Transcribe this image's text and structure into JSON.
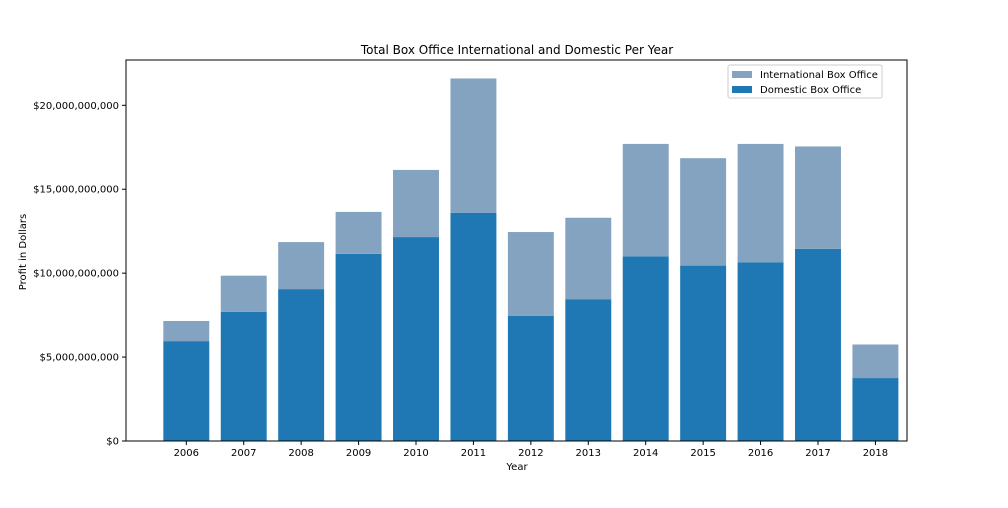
{
  "chart_data": {
    "type": "bar",
    "stacked": true,
    "title": "Total Box Office International and Domestic Per Year",
    "xlabel": "Year",
    "ylabel": "Profit in Dollars",
    "categories": [
      "2006",
      "2007",
      "2008",
      "2009",
      "2010",
      "2011",
      "2012",
      "2013",
      "2014",
      "2015",
      "2016",
      "2017",
      "2018"
    ],
    "series": [
      {
        "name": "Domestic Box Office",
        "color": "#1f77b4",
        "values": [
          5950000000,
          7700000000,
          9050000000,
          11150000000,
          12150000000,
          13600000000,
          7450000000,
          8450000000,
          11000000000,
          10450000000,
          10650000000,
          11450000000,
          3750000000
        ]
      },
      {
        "name": "International Box Office",
        "color": "#84a3c1",
        "values": [
          1200000000,
          2150000000,
          2800000000,
          2500000000,
          4000000000,
          8000000000,
          5000000000,
          4850000000,
          6700000000,
          6400000000,
          7050000000,
          6100000000,
          2000000000
        ]
      }
    ],
    "ylim": [
      0,
      22700000000
    ],
    "yticks": [
      0,
      5000000000,
      10000000000,
      15000000000,
      20000000000
    ],
    "ytick_labels": [
      "$0",
      "$5,000,000,000",
      "$10,000,000,000",
      "$15,000,000,000",
      "$20,000,000,000"
    ],
    "legend": {
      "position": "top-right",
      "entries": [
        "International Box Office",
        "Domestic Box Office"
      ]
    },
    "grid": false
  }
}
